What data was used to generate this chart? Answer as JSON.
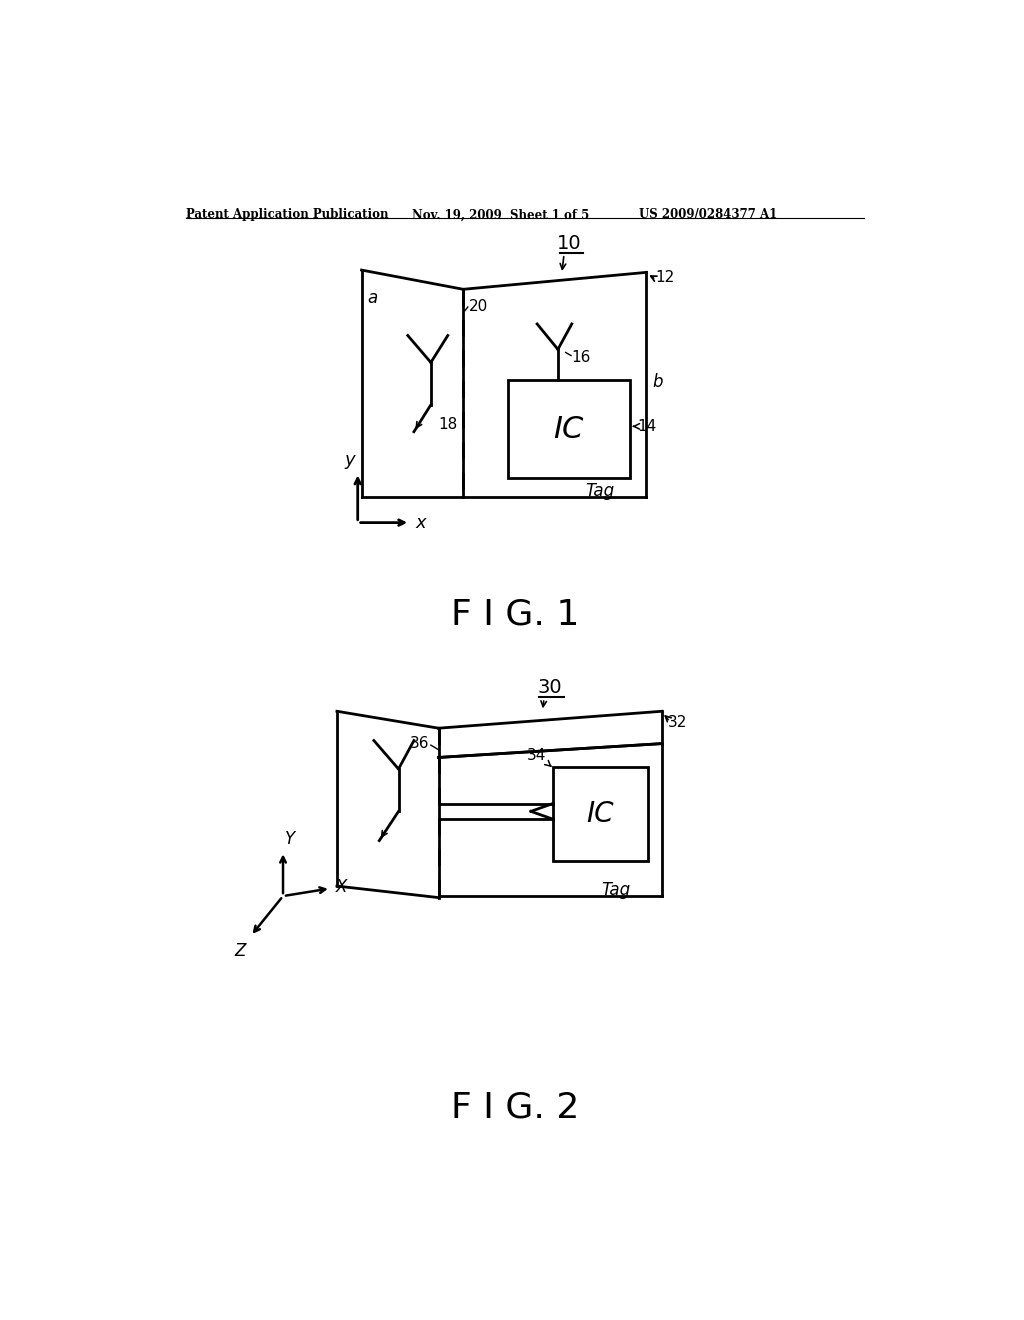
{
  "bg_color": "#ffffff",
  "header_left": "Patent Application Publication",
  "header_mid": "Nov. 19, 2009  Sheet 1 of 5",
  "header_right": "US 2009/0284377 A1",
  "fig1_label": "F I G. 1",
  "fig2_label": "F I G. 2"
}
